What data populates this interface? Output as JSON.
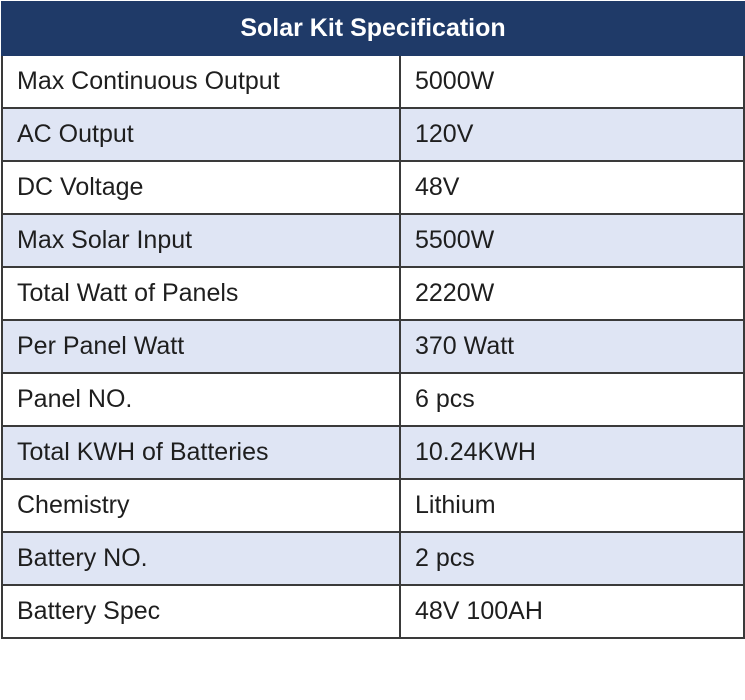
{
  "table": {
    "title": "Solar Kit Specification",
    "rows": [
      {
        "label": "Max Continuous Output",
        "value": "5000W"
      },
      {
        "label": "AC Output",
        "value": "120V"
      },
      {
        "label": "DC Voltage",
        "value": "48V"
      },
      {
        "label": "Max Solar Input",
        "value": "5500W"
      },
      {
        "label": "Total Watt of Panels",
        "value": "2220W"
      },
      {
        "label": "Per Panel Watt",
        "value": "370 Watt"
      },
      {
        "label": "Panel NO.",
        "value": "6 pcs"
      },
      {
        "label": "Total KWH of Batteries",
        "value": "10.24KWH"
      },
      {
        "label": "Chemistry",
        "value": "Lithium"
      },
      {
        "label": "Battery NO.",
        "value": "2 pcs"
      },
      {
        "label": "Battery Spec",
        "value": "48V 100AH"
      }
    ]
  },
  "colors": {
    "header_background": "#1f3a68",
    "header_text": "#ffffff",
    "stripe_background": "#dfe5f4",
    "border": "#3a3a3a"
  }
}
